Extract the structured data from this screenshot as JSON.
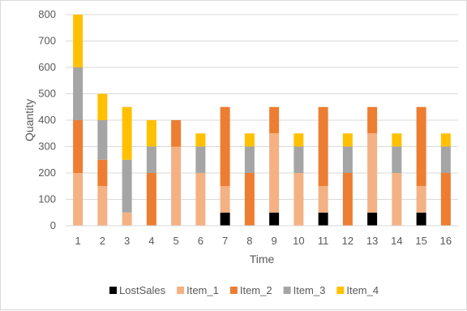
{
  "chart_data": {
    "type": "bar",
    "stacked": true,
    "title": "",
    "xlabel": "Time",
    "ylabel": "Quantity",
    "ylim": [
      0,
      800
    ],
    "yticks": [
      0,
      100,
      200,
      300,
      400,
      500,
      600,
      700,
      800
    ],
    "grid": "horizontal",
    "legend_position": "bottom",
    "categories": [
      "1",
      "2",
      "3",
      "4",
      "5",
      "6",
      "7",
      "8",
      "9",
      "10",
      "11",
      "12",
      "13",
      "14",
      "15",
      "16"
    ],
    "series": [
      {
        "name": "LostSales",
        "color": "#000000",
        "values": [
          0,
          0,
          0,
          0,
          0,
          0,
          50,
          0,
          50,
          0,
          50,
          0,
          50,
          0,
          50,
          0
        ]
      },
      {
        "name": "Item_1",
        "color": "#F4B183",
        "values": [
          200,
          150,
          50,
          0,
          300,
          200,
          100,
          0,
          300,
          200,
          100,
          0,
          300,
          200,
          100,
          0
        ]
      },
      {
        "name": "Item_2",
        "color": "#ED7D31",
        "values": [
          200,
          100,
          0,
          200,
          100,
          0,
          300,
          200,
          100,
          0,
          300,
          200,
          100,
          0,
          300,
          200
        ]
      },
      {
        "name": "Item_3",
        "color": "#A5A5A5",
        "values": [
          200,
          150,
          200,
          100,
          0,
          100,
          0,
          100,
          0,
          100,
          0,
          100,
          0,
          100,
          0,
          100
        ]
      },
      {
        "name": "Item_4",
        "color": "#FFC000",
        "values": [
          200,
          100,
          200,
          100,
          0,
          50,
          0,
          50,
          0,
          50,
          0,
          50,
          0,
          50,
          0,
          50
        ]
      }
    ]
  }
}
